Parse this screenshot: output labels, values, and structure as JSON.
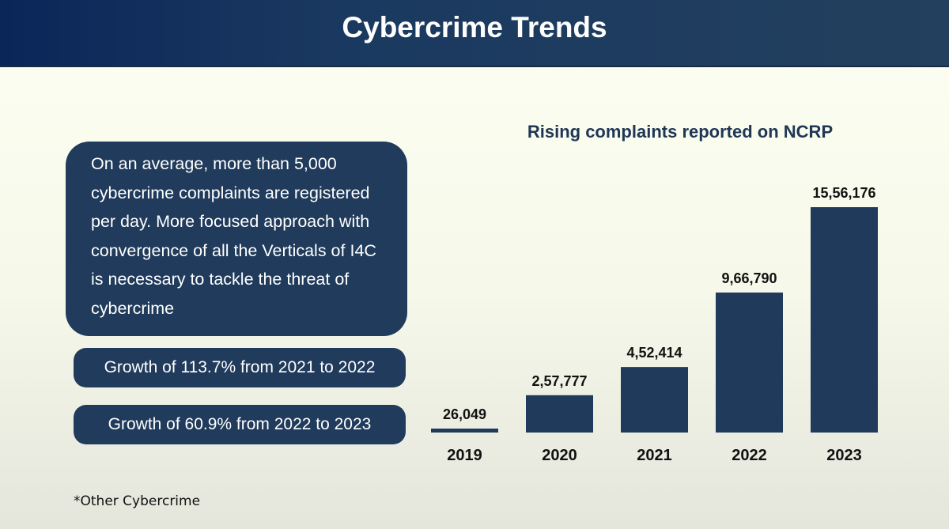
{
  "header": {
    "title": "Cybercrime Trends"
  },
  "info": {
    "summary": "On an average, more than 5,000 cybercrime complaints are registered per day. More focused approach with convergence of all the Verticals of I4C is necessary to tackle the threat of cybercrime",
    "growth_1": "Growth of 113.7% from 2021 to 2022",
    "growth_2": "Growth of 60.9% from 2022 to 2023"
  },
  "footnote": "*Other Cybercrime",
  "colors": {
    "bar": "#1f3a5a",
    "header": "#1a3960",
    "box": "#203b5b"
  },
  "chart_data": {
    "type": "bar",
    "title": "Rising complaints reported on NCRP",
    "categories": [
      "2019",
      "2020",
      "2021",
      "2022",
      "2023"
    ],
    "values": [
      26049,
      257777,
      452414,
      966790,
      1556176
    ],
    "data_labels": [
      "26,049",
      "2,57,777",
      "4,52,414",
      "9,66,790",
      "15,56,176"
    ],
    "xlabel": "",
    "ylabel": "",
    "grid": false,
    "legend": "none"
  }
}
